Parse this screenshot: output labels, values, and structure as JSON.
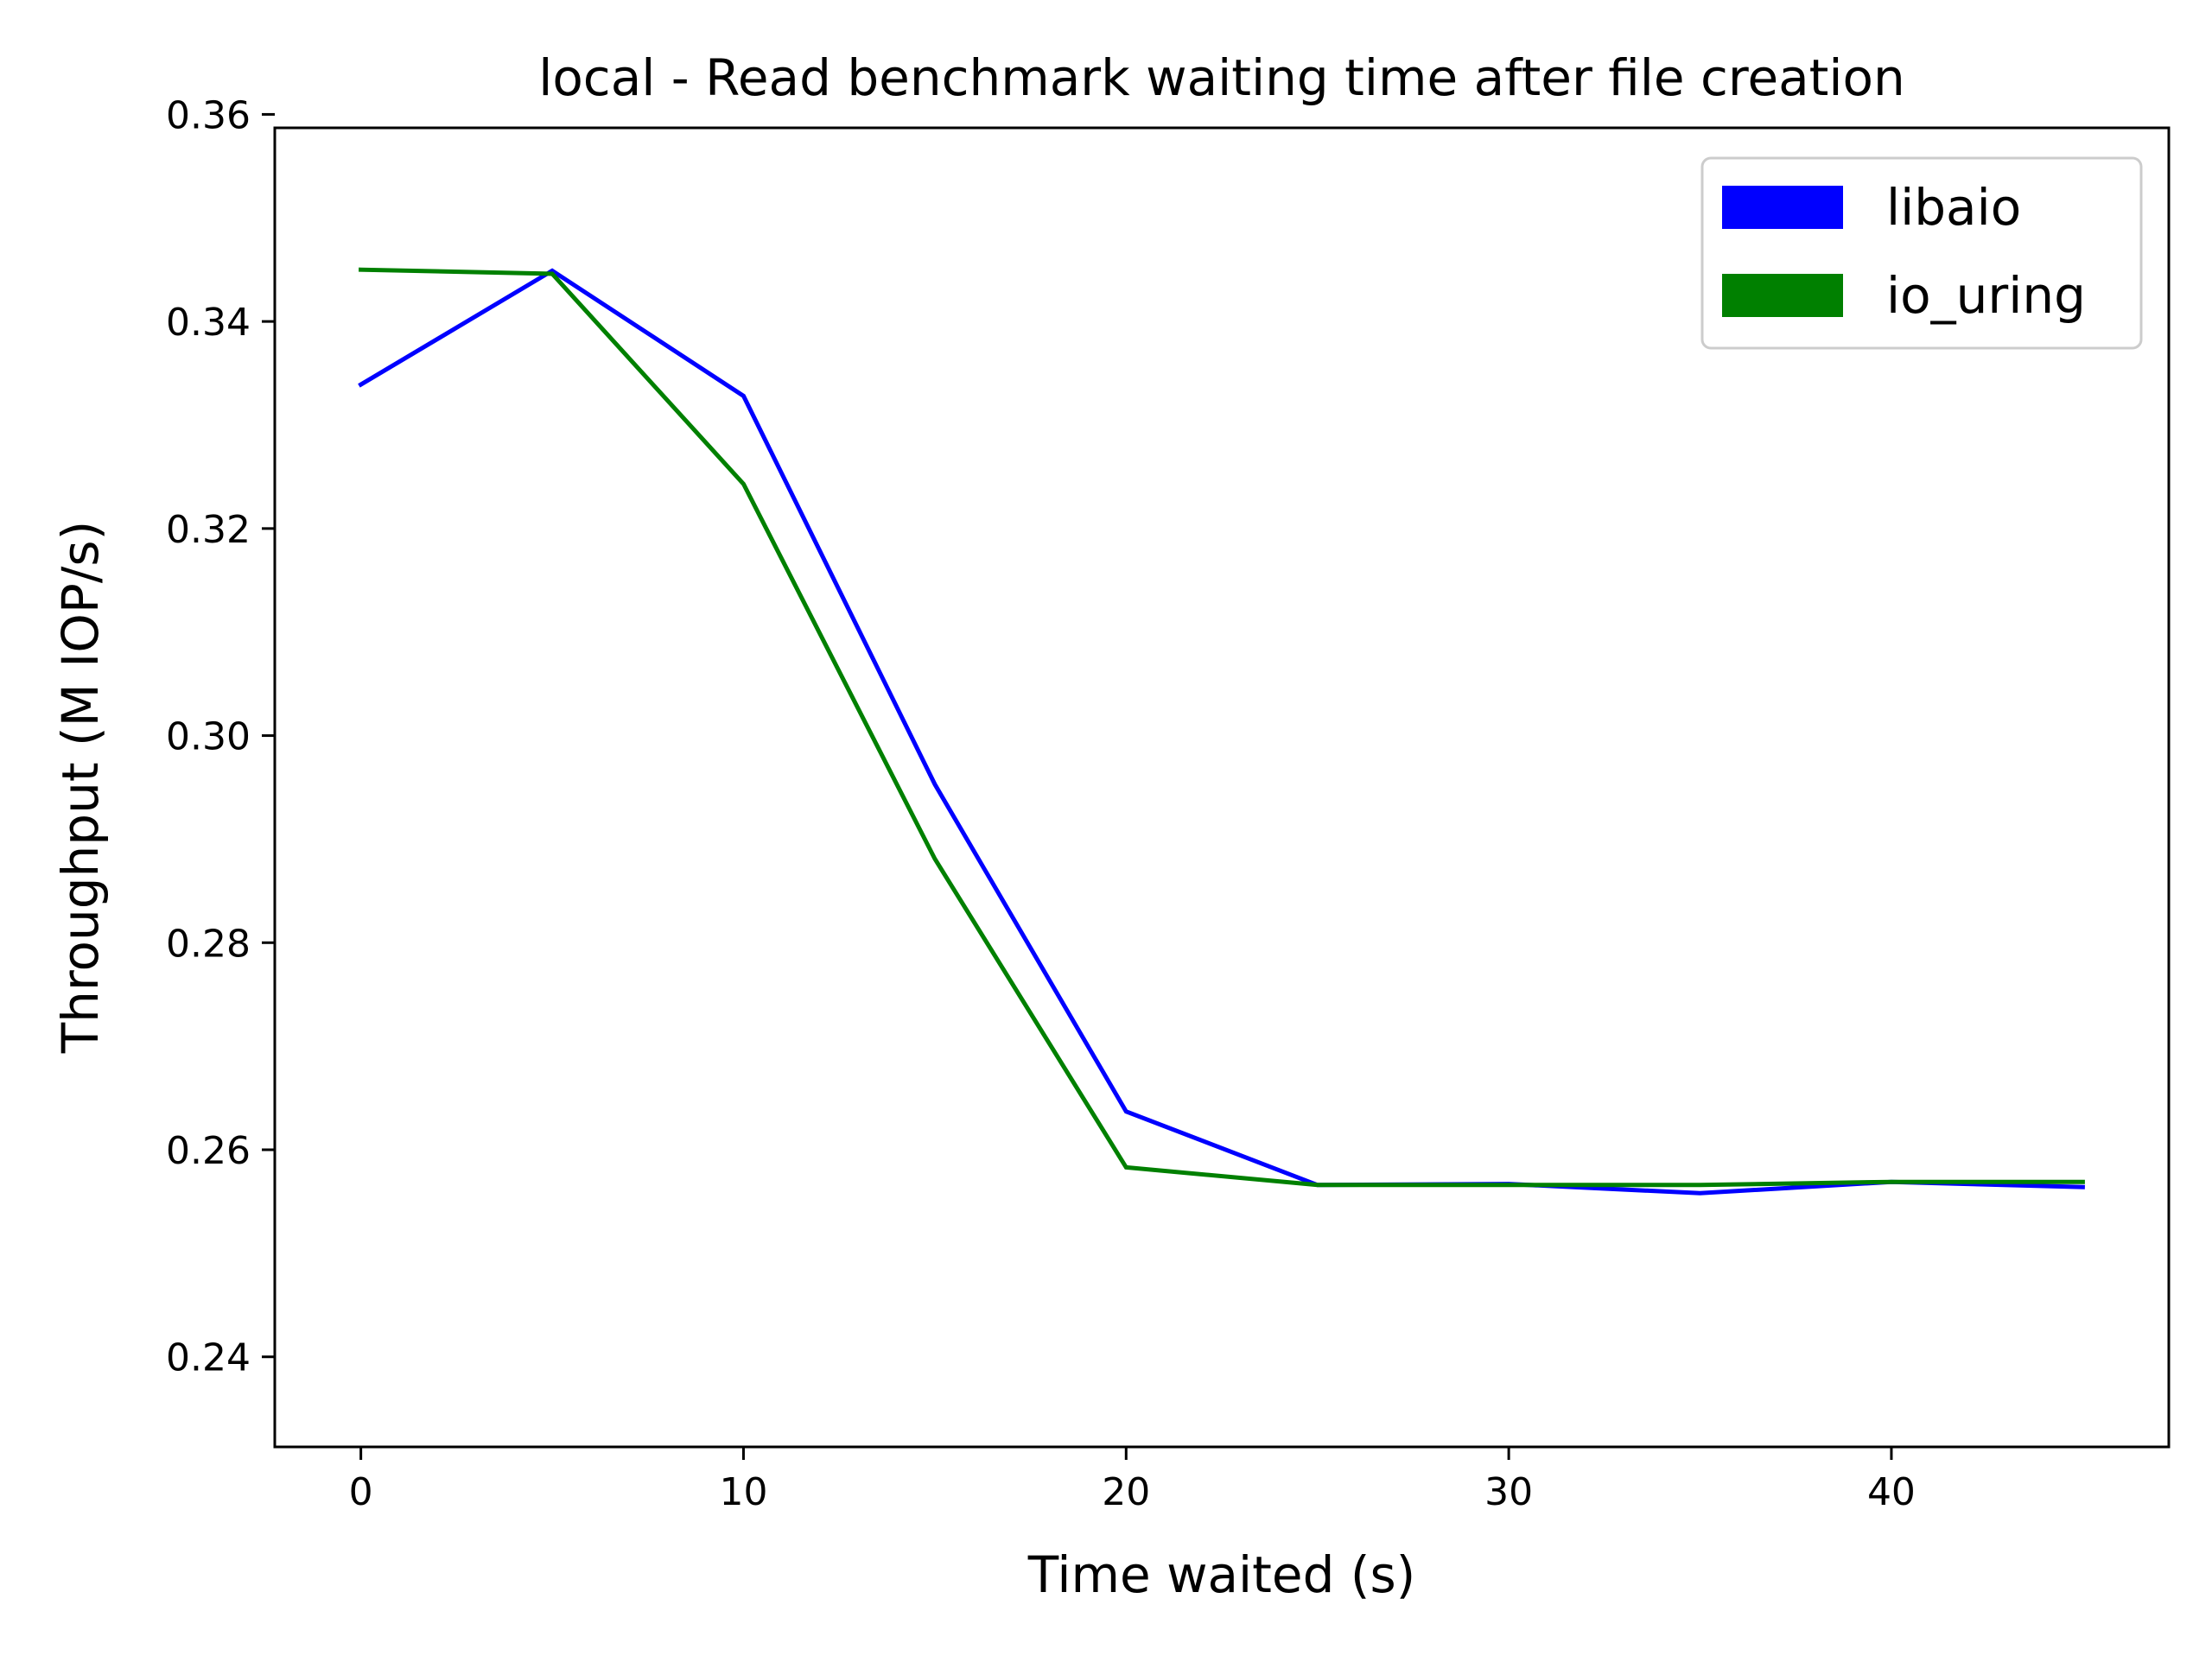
{
  "chart_data": {
    "type": "line",
    "title": "local - Read benchmark waiting time after file creation",
    "xlabel": "Time waited (s)",
    "ylabel": "Throughput (M IOP/s)",
    "x": [
      0,
      5,
      10,
      15,
      20,
      25,
      30,
      35,
      40,
      45
    ],
    "xlim": [
      -2.25,
      47.25
    ],
    "ylim": [
      0.2313,
      0.3587
    ],
    "xticks": [
      0,
      10,
      20,
      30,
      40
    ],
    "xtick_labels": [
      "0",
      "10",
      "20",
      "30",
      "40"
    ],
    "yticks": [
      0.24,
      0.26,
      0.28,
      0.3,
      0.32,
      0.34,
      0.36
    ],
    "ytick_labels": [
      "0.24",
      "0.26",
      "0.28",
      "0.30",
      "0.32",
      "0.34",
      "0.36"
    ],
    "grid": false,
    "legend_position": "top-right",
    "series": [
      {
        "name": "libaio",
        "color": "#0000ff",
        "values": [
          0.3339,
          0.3449,
          0.3328,
          0.2953,
          0.2637,
          0.2566,
          0.2567,
          0.2558,
          0.2569,
          0.2564
        ]
      },
      {
        "name": "io_uring",
        "color": "#008000",
        "values": [
          0.345,
          0.3446,
          0.3243,
          0.2881,
          0.2583,
          0.2566,
          0.2566,
          0.2566,
          0.2569,
          0.2569
        ]
      }
    ]
  }
}
